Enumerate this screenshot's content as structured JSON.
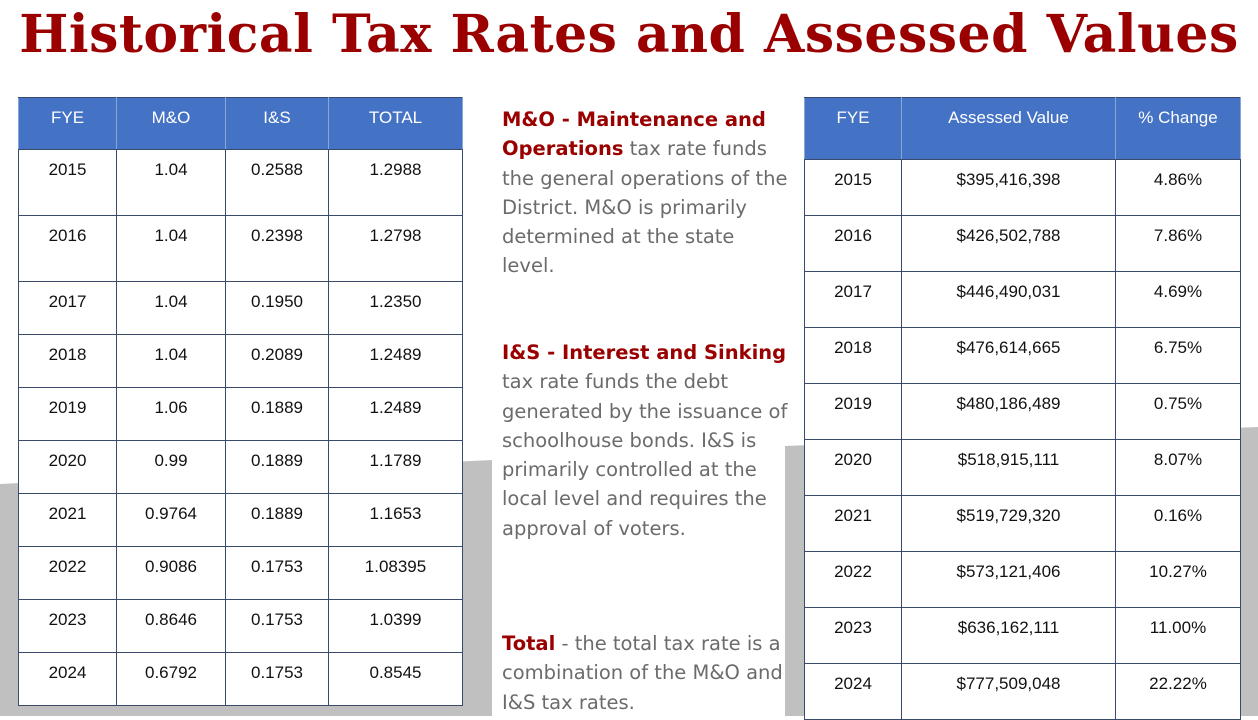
{
  "title": "Historical Tax Rates and Assessed Values",
  "colors": {
    "title": "#9b0000",
    "header_fill": "#4472c4",
    "accent_text": "#9b0000",
    "body_text": "#6b6b6b",
    "background_band": "#c0c0c0"
  },
  "rates_table": {
    "headers": [
      "FYE",
      "M&O",
      "I&S",
      "TOTAL"
    ],
    "rows": [
      [
        "2015",
        "1.04",
        "0.2588",
        "1.2988"
      ],
      [
        "2016",
        "1.04",
        "0.2398",
        "1.2798"
      ],
      [
        "2017",
        "1.04",
        "0.1950",
        "1.2350"
      ],
      [
        "2018",
        "1.04",
        "0.2089",
        "1.2489"
      ],
      [
        "2019",
        "1.06",
        "0.1889",
        "1.2489"
      ],
      [
        "2020",
        "0.99",
        "0.1889",
        "1.1789"
      ],
      [
        "2021",
        "0.9764",
        "0.1889",
        "1.1653"
      ],
      [
        "2022",
        "0.9086",
        "0.1753",
        "1.08395"
      ],
      [
        "2023",
        "0.8646",
        "0.1753",
        "1.0399"
      ],
      [
        "2024",
        "0.6792",
        "0.1753",
        "0.8545"
      ]
    ]
  },
  "explanations": [
    {
      "term": "M&O - Maintenance and Operations",
      "text": " tax rate funds the general operations of the District. M&O is primarily determined at the state level."
    },
    {
      "term": "I&S - Interest and Sinking",
      "text": " tax rate funds the debt generated by the issuance of schoolhouse bonds. I&S is primarily controlled at the local level and requires the approval of voters."
    },
    {
      "term": "Total",
      "text": " - the total tax rate is a combination of the M&O and I&S tax rates."
    }
  ],
  "assessed_table": {
    "headers": [
      "FYE",
      "Assessed Value",
      "% Change"
    ],
    "rows": [
      [
        "2015",
        "$395,416,398",
        "4.86%"
      ],
      [
        "2016",
        "$426,502,788",
        "7.86%"
      ],
      [
        "2017",
        "$446,490,031",
        "4.69%"
      ],
      [
        "2018",
        "$476,614,665",
        "6.75%"
      ],
      [
        "2019",
        "$480,186,489",
        "0.75%"
      ],
      [
        "2020",
        "$518,915,111",
        "8.07%"
      ],
      [
        "2021",
        "$519,729,320",
        "0.16%"
      ],
      [
        "2022",
        "$573,121,406",
        "10.27%"
      ],
      [
        "2023",
        "$636,162,111",
        "11.00%"
      ],
      [
        "2024",
        "$777,509,048",
        "22.22%"
      ]
    ]
  }
}
